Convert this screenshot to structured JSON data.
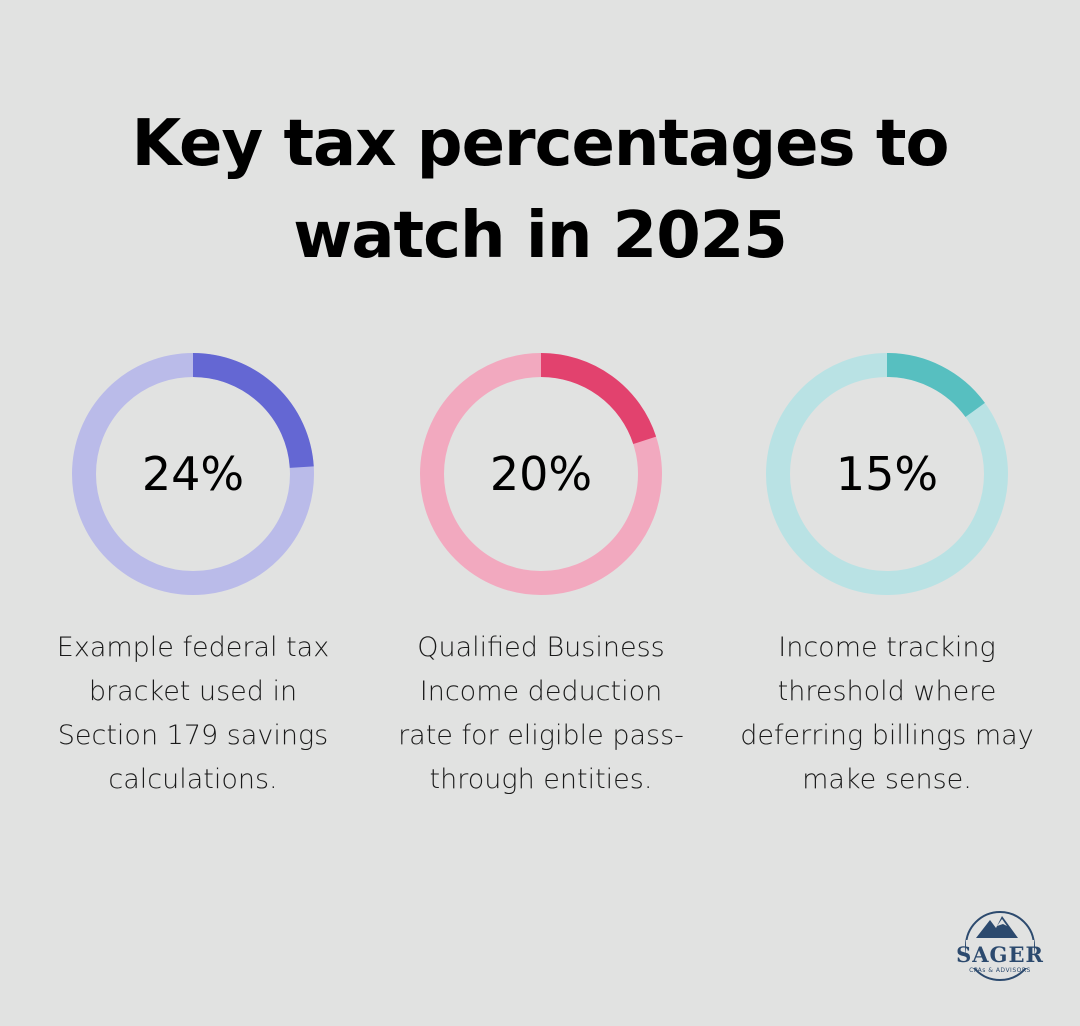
{
  "title_lines": [
    "Key tax percentages to",
    "watch in 2025"
  ],
  "chart_data": {
    "type": "donut",
    "items": [
      {
        "label": "24%",
        "value": 24,
        "description": [
          "Example federal tax",
          "bracket used in",
          "Section 179 savings",
          "calculations."
        ],
        "color": "#6467d3",
        "track_color": "#babbe9"
      },
      {
        "label": "20%",
        "value": 20,
        "description": [
          "Qualified Business",
          "Income deduction",
          "rate for eligible pass-",
          "through entities."
        ],
        "color": "#e2426e",
        "track_color": "#f2a9bf"
      },
      {
        "label": "15%",
        "value": 15,
        "description": [
          "Income tracking",
          "threshold where",
          "deferring billings may",
          "make sense."
        ],
        "color": "#57bfc0",
        "track_color": "#b9e2e4"
      }
    ]
  },
  "logo": {
    "name": "SAGER",
    "tagline": "CPAs & ADVISORS",
    "color": "#2c4a6e"
  }
}
